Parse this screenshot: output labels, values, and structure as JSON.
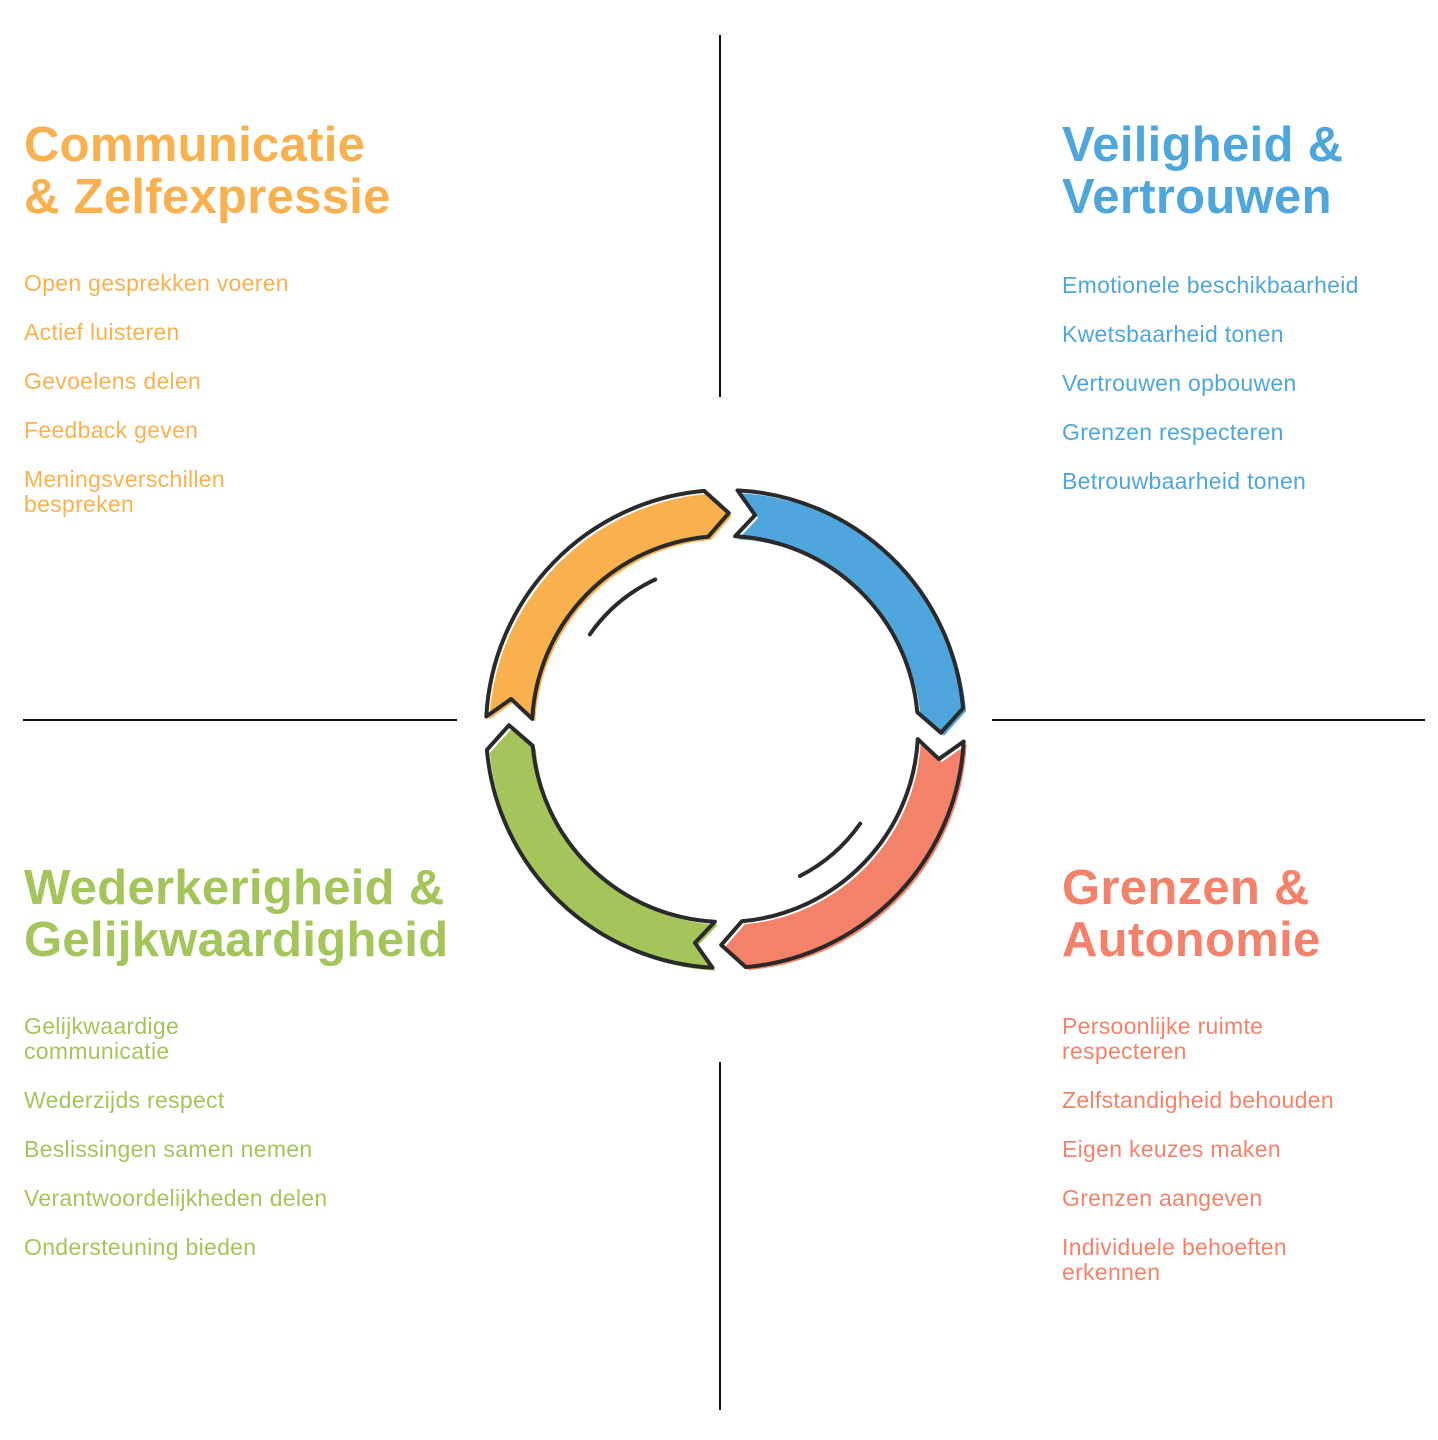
{
  "colors": {
    "orange": "#F9B14F",
    "blue": "#4EA6DC",
    "red": "#F4826B",
    "green": "#A3C55A",
    "outline": "#2a2a2a"
  },
  "quadrants": {
    "communication": {
      "title_line1": "Communicatie",
      "title_line2": "& Zelfexpressie",
      "items": [
        "Open gesprekken voeren",
        "Actief luisteren",
        "Gevoelens delen",
        "Feedback geven",
        "Meningsverschillen bespreken"
      ]
    },
    "safety": {
      "title_line1": "Veiligheid &",
      "title_line2": "Vertrouwen",
      "items": [
        "Emotionele beschikbaarheid",
        "Kwetsbaarheid tonen",
        "Vertrouwen opbouwen",
        "Grenzen respecteren",
        "Betrouwbaarheid tonen"
      ]
    },
    "reciprocity": {
      "title_line1": "Wederkerigheid &",
      "title_line2": "Gelijkwaardigheid",
      "items": [
        "Gelijkwaardige communicatie",
        "Wederzijds respect",
        "Beslissingen samen nemen",
        "Verantwoordelijkheden delen",
        "Ondersteuning bieden"
      ]
    },
    "boundaries": {
      "title_line1": "Grenzen &",
      "title_line2": "Autonomie",
      "items": [
        "Persoonlijke ruimte respecteren",
        "Zelfstandigheid behouden",
        "Eigen keuzes maken",
        "Grenzen aangeven",
        "Individuele behoeften erkennen"
      ]
    }
  },
  "cycle": {
    "direction": "clockwise",
    "segments": [
      "orange",
      "blue",
      "red",
      "green"
    ]
  }
}
